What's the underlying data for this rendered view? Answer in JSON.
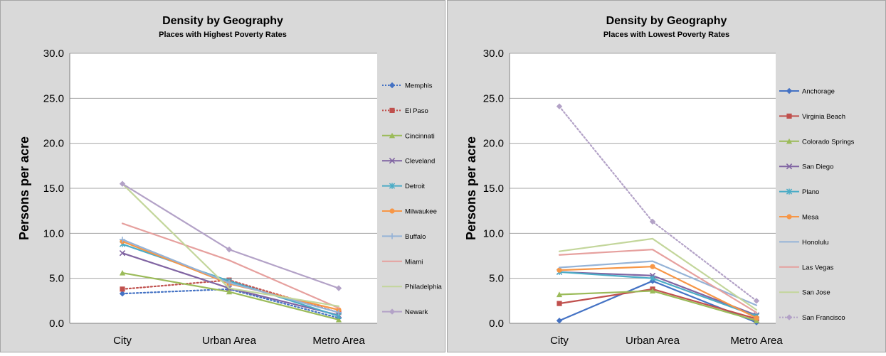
{
  "chart_data": [
    {
      "type": "line",
      "title": "Density by Geography",
      "subtitle": "Places with Highest Poverty Rates",
      "ylabel": "Persons per acre",
      "xlabel": "",
      "categories": [
        "City",
        "Urban Area",
        "Metro Area"
      ],
      "ylim": [
        0,
        30
      ],
      "yticks": [
        "0.0",
        "5.0",
        "10.0",
        "15.0",
        "20.0",
        "25.0",
        "30.0"
      ],
      "grid": true,
      "legend_position": "right",
      "series": [
        {
          "name": "Memphis",
          "values": [
            3.3,
            3.8,
            0.6
          ],
          "color": "#4472c4",
          "dash": true,
          "marker": "diamond"
        },
        {
          "name": "El Paso",
          "values": [
            3.8,
            4.8,
            1.2
          ],
          "color": "#c0504d",
          "dash": true,
          "marker": "square"
        },
        {
          "name": "Cincinnati",
          "values": [
            5.6,
            3.5,
            0.4
          ],
          "color": "#9bbb59",
          "dash": false,
          "marker": "triangle"
        },
        {
          "name": "Cleveland",
          "values": [
            7.8,
            3.9,
            0.9
          ],
          "color": "#8064a2",
          "dash": false,
          "marker": "x"
        },
        {
          "name": "Detroit",
          "values": [
            8.8,
            4.7,
            0.8
          ],
          "color": "#4bacc6",
          "dash": false,
          "marker": "star"
        },
        {
          "name": "Milwaukee",
          "values": [
            9.1,
            4.4,
            1.5
          ],
          "color": "#f79646",
          "dash": false,
          "marker": "circle"
        },
        {
          "name": "Buffalo",
          "values": [
            9.3,
            4.5,
            1.2
          ],
          "color": "#95b3d7",
          "dash": false,
          "marker": "plus"
        },
        {
          "name": "Miami",
          "values": [
            11.1,
            7.0,
            1.7
          ],
          "color": "#e6a09e",
          "dash": false,
          "marker": "none"
        },
        {
          "name": "Philadelphia",
          "values": [
            15.5,
            3.9,
            1.9
          ],
          "color": "#c3d69b",
          "dash": false,
          "marker": "none"
        },
        {
          "name": "Newark",
          "values": [
            15.5,
            8.2,
            3.9
          ],
          "color": "#b3a2c7",
          "dash": false,
          "marker": "diamond"
        }
      ]
    },
    {
      "type": "line",
      "title": "Density by Geography",
      "subtitle": "Places with Lowest Poverty Rates",
      "ylabel": "Persons per acre",
      "xlabel": "",
      "categories": [
        "City",
        "Urban Area",
        "Metro Area"
      ],
      "ylim": [
        0,
        30
      ],
      "yticks": [
        "0.0",
        "5.0",
        "10.0",
        "15.0",
        "20.0",
        "25.0",
        "30.0"
      ],
      "grid": true,
      "legend_position": "right",
      "series": [
        {
          "name": "Anchorage",
          "values": [
            0.3,
            4.7,
            0.1
          ],
          "color": "#4472c4",
          "dash": false,
          "marker": "diamond"
        },
        {
          "name": "Virginia Beach",
          "values": [
            2.2,
            3.8,
            0.5
          ],
          "color": "#c0504d",
          "dash": false,
          "marker": "square"
        },
        {
          "name": "Colorado Springs",
          "values": [
            3.2,
            3.6,
            0.3
          ],
          "color": "#9bbb59",
          "dash": false,
          "marker": "triangle"
        },
        {
          "name": "San Diego",
          "values": [
            5.7,
            5.3,
            0.9
          ],
          "color": "#8064a2",
          "dash": false,
          "marker": "x"
        },
        {
          "name": "Plano",
          "values": [
            5.7,
            5.0,
            0.8
          ],
          "color": "#4bacc6",
          "dash": false,
          "marker": "star"
        },
        {
          "name": "Mesa",
          "values": [
            5.9,
            6.3,
            0.6
          ],
          "color": "#f79646",
          "dash": false,
          "marker": "circle"
        },
        {
          "name": "Honolulu",
          "values": [
            6.2,
            6.9,
            2.0
          ],
          "color": "#95b3d7",
          "dash": false,
          "marker": "none"
        },
        {
          "name": "Las Vegas",
          "values": [
            7.6,
            8.2,
            1.2
          ],
          "color": "#e6a09e",
          "dash": false,
          "marker": "none"
        },
        {
          "name": "San Jose",
          "values": [
            8.0,
            9.4,
            1.5
          ],
          "color": "#c3d69b",
          "dash": false,
          "marker": "none"
        },
        {
          "name": "San Francisco",
          "values": [
            24.1,
            11.3,
            2.5
          ],
          "color": "#b3a2c7",
          "dash": true,
          "marker": "diamond"
        }
      ]
    }
  ]
}
